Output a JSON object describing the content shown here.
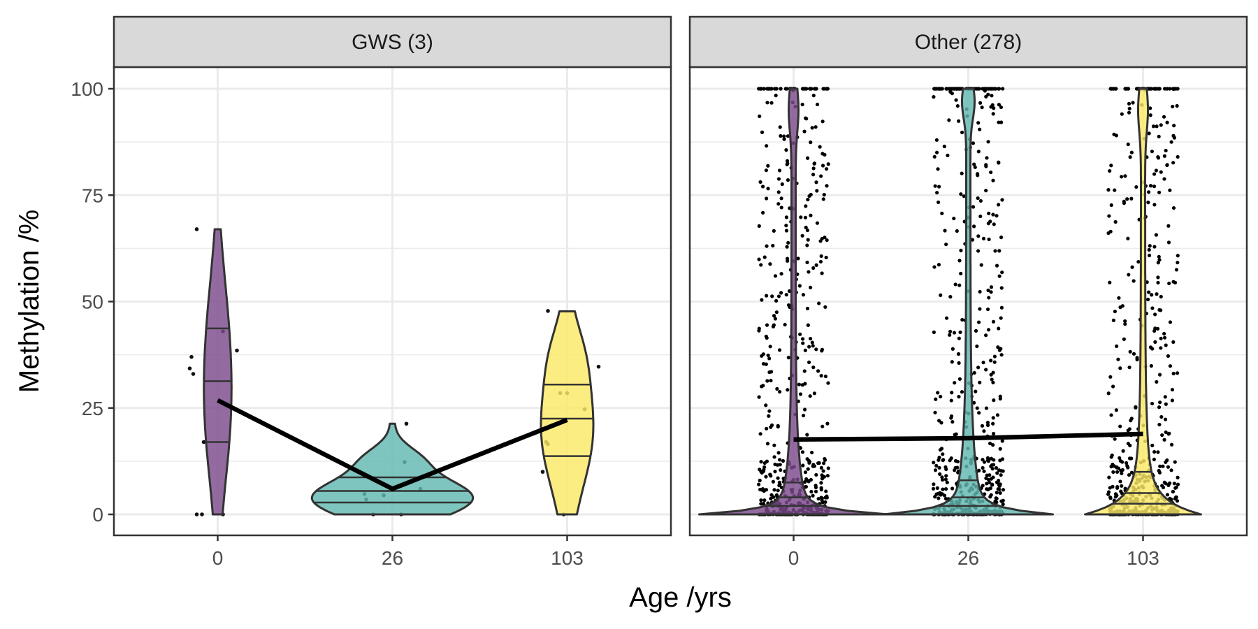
{
  "chart_data": {
    "type": "violin",
    "xlabel": "Age /yrs",
    "ylabel": "Methylation /%",
    "ylim": [
      -5,
      105
    ],
    "y_ticks": [
      "0",
      "25",
      "50",
      "75",
      "100"
    ],
    "x_categories": [
      "0",
      "26",
      "103"
    ],
    "group_colors": {
      "0": "#7b4a8c",
      "26": "#62b7b1",
      "103": "#fbe966"
    },
    "grid": true,
    "facets": [
      {
        "label": "GWS (3)",
        "groups": [
          {
            "category": "0",
            "mean": 26.8,
            "quantiles": [
              17,
              31.3,
              43.7
            ],
            "min": 0,
            "max": 67,
            "points": [
              {
                "x": -0.12,
                "y": 67
              },
              {
                "x": -0.15,
                "y": 37
              },
              {
                "x": -0.16,
                "y": 34.3
              },
              {
                "x": -0.14,
                "y": 33
              },
              {
                "x": 0.03,
                "y": 43
              },
              {
                "x": 0.11,
                "y": 38.5
              },
              {
                "x": -0.08,
                "y": 17
              },
              {
                "x": -0.12,
                "y": 0
              },
              {
                "x": -0.09,
                "y": 0
              },
              {
                "x": 0.03,
                "y": 0
              }
            ]
          },
          {
            "category": "26",
            "mean": 6,
            "quantiles": [
              2.8,
              5.5,
              8.7
            ],
            "min": 0,
            "max": 21.3,
            "points": [
              {
                "x": 0.08,
                "y": 21.3
              },
              {
                "x": 0.07,
                "y": 12.3
              },
              {
                "x": -0.16,
                "y": 4.8
              },
              {
                "x": -0.15,
                "y": 3.5
              },
              {
                "x": -0.05,
                "y": 4.5
              },
              {
                "x": 0.16,
                "y": 6
              },
              {
                "x": -0.11,
                "y": 0
              },
              {
                "x": 0.05,
                "y": 0
              }
            ]
          },
          {
            "category": "103",
            "mean": 22.2,
            "quantiles": [
              13.7,
              22.5,
              30.5
            ],
            "min": 0,
            "max": 47.7,
            "points": [
              {
                "x": -0.11,
                "y": 47.8
              },
              {
                "x": 0.18,
                "y": 34.7
              },
              {
                "x": -0.04,
                "y": 28.5
              },
              {
                "x": 0,
                "y": 28.5
              },
              {
                "x": 0.1,
                "y": 24.7
              },
              {
                "x": -0.12,
                "y": 17
              },
              {
                "x": -0.11,
                "y": 16.5
              },
              {
                "x": -0.14,
                "y": 10
              },
              {
                "x": -0.02,
                "y": 0
              }
            ]
          }
        ]
      },
      {
        "label": "Other (278)",
        "groups": [
          {
            "category": "0",
            "mean": 17.6,
            "quantiles": [
              2,
              4,
              7.5
            ],
            "min": 0,
            "max": 100
          },
          {
            "category": "26",
            "mean": 17.9,
            "quantiles": [
              2,
              4,
              8
            ],
            "min": 0,
            "max": 100
          },
          {
            "category": "103",
            "mean": 18.9,
            "quantiles": [
              2.5,
              5,
              10
            ],
            "min": 0,
            "max": 100
          }
        ]
      }
    ]
  }
}
